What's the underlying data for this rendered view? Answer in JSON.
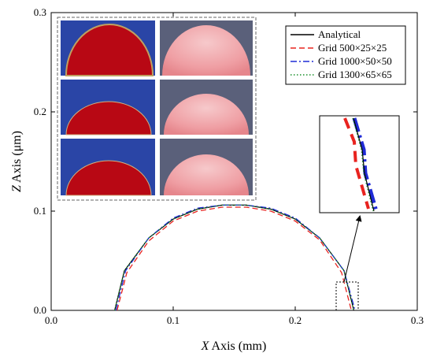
{
  "chart_data": {
    "type": "line",
    "x_axis": {
      "label_var": "X",
      "label_rest": " Axis (mm)",
      "lim": [
        0.0,
        0.3
      ],
      "ticks": [
        "0.0",
        "0.1",
        "0.2",
        "0.3"
      ]
    },
    "y_axis": {
      "label_var": "Z",
      "label_rest": " Axis (μm)",
      "lim": [
        0.0,
        0.3
      ],
      "ticks": [
        "0.0",
        "0.1",
        "0.2",
        "0.3"
      ]
    },
    "grid": false,
    "legend_position": "top-right",
    "series": [
      {
        "name": "Analytical",
        "color": "#000000",
        "style": "solid",
        "x": [
          0.052,
          0.06,
          0.08,
          0.1,
          0.12,
          0.14,
          0.15,
          0.16,
          0.18,
          0.2,
          0.22,
          0.24,
          0.248
        ],
        "y": [
          0.0,
          0.04,
          0.073,
          0.092,
          0.102,
          0.106,
          0.106,
          0.106,
          0.102,
          0.092,
          0.073,
          0.04,
          0.0
        ]
      },
      {
        "name": "Grid 500×25×25",
        "color": "#e8231f",
        "style": "dash",
        "x": [
          0.054,
          0.062,
          0.08,
          0.1,
          0.12,
          0.14,
          0.15,
          0.16,
          0.18,
          0.2,
          0.22,
          0.238,
          0.246
        ],
        "y": [
          0.0,
          0.038,
          0.07,
          0.09,
          0.1,
          0.104,
          0.104,
          0.104,
          0.1,
          0.09,
          0.071,
          0.038,
          0.0
        ]
      },
      {
        "name": "Grid 1000×50×50",
        "color": "#1f2bd6",
        "style": "dashdot",
        "x": [
          0.053,
          0.061,
          0.08,
          0.1,
          0.12,
          0.14,
          0.15,
          0.16,
          0.18,
          0.2,
          0.22,
          0.24,
          0.249
        ],
        "y": [
          0.0,
          0.04,
          0.073,
          0.093,
          0.103,
          0.106,
          0.106,
          0.106,
          0.103,
          0.093,
          0.073,
          0.04,
          0.0
        ]
      },
      {
        "name": "Grid 1300×65×65",
        "color": "#1a8f2a",
        "style": "dot",
        "x": [
          0.052,
          0.06,
          0.08,
          0.1,
          0.12,
          0.14,
          0.15,
          0.16,
          0.18,
          0.2,
          0.22,
          0.24,
          0.248
        ],
        "y": [
          0.0,
          0.04,
          0.073,
          0.092,
          0.102,
          0.106,
          0.106,
          0.106,
          0.102,
          0.092,
          0.073,
          0.04,
          0.0
        ]
      }
    ]
  }
}
